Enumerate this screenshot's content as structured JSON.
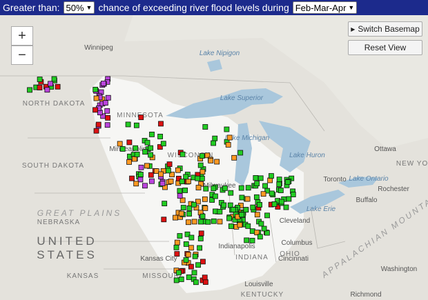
{
  "header": {
    "label_before": "Greater than:",
    "threshold": "50%",
    "label_after": "chance of exceeding river flood levels during",
    "period": "Feb-Mar-Apr"
  },
  "controls": {
    "zoom_in": "+",
    "zoom_out": "−",
    "switch_basemap": "Switch Basemap",
    "reset_view": "Reset View"
  },
  "map_labels": [
    "Winnipeg",
    "Lake Nipigon",
    "Lake Superior",
    "NORTH DAKOTA",
    "MINNESOTA",
    "Minneapolis",
    "SOUTH DAKOTA",
    "WISCONSIN",
    "Lake Michigan",
    "Lake Huron",
    "Ottawa",
    "NEW YORK",
    "Toronto",
    "Lake Ontario",
    "Rochester",
    "Buffalo",
    "Lake Erie",
    "Cleveland",
    "GREAT PLAINS",
    "NEBRASKA",
    "UNITED",
    "STATES",
    "Milwaukee",
    "Indianapolis",
    "Columbus",
    "OHIO",
    "INDIANA",
    "Kansas City",
    "Cincinnati",
    "KANSAS",
    "MISSOURI",
    "Louisville",
    "Washington",
    "KENTUCKY",
    "Richmond",
    "APPALACHIAN MOUNTAINS"
  ]
}
